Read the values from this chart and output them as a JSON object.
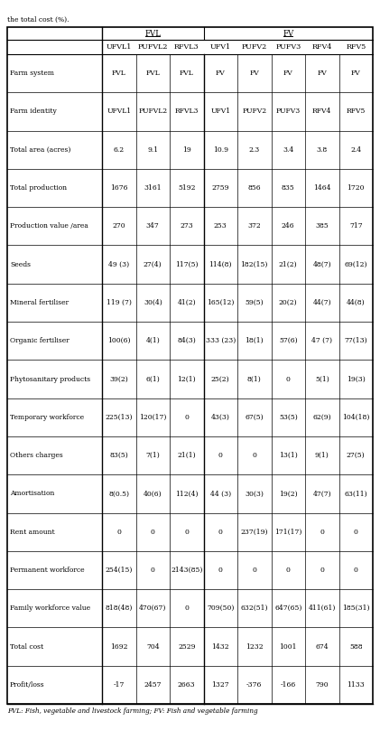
{
  "title": "the total cost (%).",
  "col_groups": [
    {
      "label": "FVL",
      "span": 3
    },
    {
      "label": "FV",
      "span": 5
    }
  ],
  "columns": [
    "UFVL1",
    "PUFVL2",
    "RFVL3",
    "UFV1",
    "PUFV2",
    "PUFV3",
    "RFV4",
    "RFV5"
  ],
  "row_labels": [
    "Farm system",
    "Farm identity",
    "Total area (acres)",
    "Total production",
    "Production value /area",
    "Seeds",
    "Mineral fertiliser",
    "Organic fertiliser",
    "Phytosanitary products",
    "Temporary workforce",
    "Others charges",
    "Amortisation",
    "Rent amount",
    "Permanent workforce",
    "Family workforce value",
    "Total cost",
    "Profit/loss"
  ],
  "data": [
    [
      "FVL",
      "FVL",
      "FVL",
      "FV",
      "FV",
      "FV",
      "FV",
      "FV"
    ],
    [
      "UFVL1",
      "PUFVL2",
      "RFVL3",
      "UFV1",
      "PUFV2",
      "PUFV3",
      "RFV4",
      "RFV5"
    ],
    [
      "6.2",
      "9.1",
      "19",
      "10.9",
      "2.3",
      "3.4",
      "3.8",
      "2.4"
    ],
    [
      "1676",
      "3161",
      "5192",
      "2759",
      "856",
      "835",
      "1464",
      "1720"
    ],
    [
      "270",
      "347",
      "273",
      "253",
      "372",
      "246",
      "385",
      "717"
    ],
    [
      "49 (3)",
      "27(4)",
      "117(5)",
      "114(8)",
      "182(15)",
      "21(2)",
      "48(7)",
      "69(12)"
    ],
    [
      "119 (7)",
      "30(4)",
      "41(2)",
      "165(12)",
      "59(5)",
      "20(2)",
      "44(7)",
      "44(8)"
    ],
    [
      "100(6)",
      "4(1)",
      "84(3)",
      "333 (23)",
      "18(1)",
      "57(6)",
      "47 (7)",
      "77(13)"
    ],
    [
      "39(2)",
      "6(1)",
      "12(1)",
      "25(2)",
      "8(1)",
      "0",
      "5(1)",
      "19(3)"
    ],
    [
      "225(13)",
      "120(17)",
      "0",
      "43(3)",
      "67(5)",
      "53(5)",
      "62(9)",
      "104(18)"
    ],
    [
      "83(5)",
      "7(1)",
      "21(1)",
      "0",
      "0",
      "13(1)",
      "9(1)",
      "27(5)"
    ],
    [
      "8(0.5)",
      "40(6)",
      "112(4)",
      "44 (3)",
      "30(3)",
      "19(2)",
      "47(7)",
      "63(11)"
    ],
    [
      "0",
      "0",
      "0",
      "0",
      "237(19)",
      "171(17)",
      "0",
      "0"
    ],
    [
      "254(15)",
      "0",
      "2143(85)",
      "0",
      "0",
      "0",
      "0",
      "0"
    ],
    [
      "818(48)",
      "470(67)",
      "0",
      "709(50)",
      "632(51)",
      "647(65)",
      "411(61)",
      "185(31)"
    ],
    [
      "1692",
      "704",
      "2529",
      "1432",
      "1232",
      "1001",
      "674",
      "588"
    ],
    [
      "-17",
      "2457",
      "2663",
      "1327",
      "-376",
      "-166",
      "790",
      "1133"
    ]
  ],
  "footer": "FVL: Fish, vegetable and livestock farming; FV: Fish and vegetable farming",
  "bg_color": "#ffffff",
  "text_color": "#000000",
  "line_color": "#000000",
  "fontsize_data": 5.5,
  "fontsize_header": 5.8,
  "fontsize_group": 6.2,
  "fontsize_title": 5.5,
  "fontsize_footer": 5.2
}
